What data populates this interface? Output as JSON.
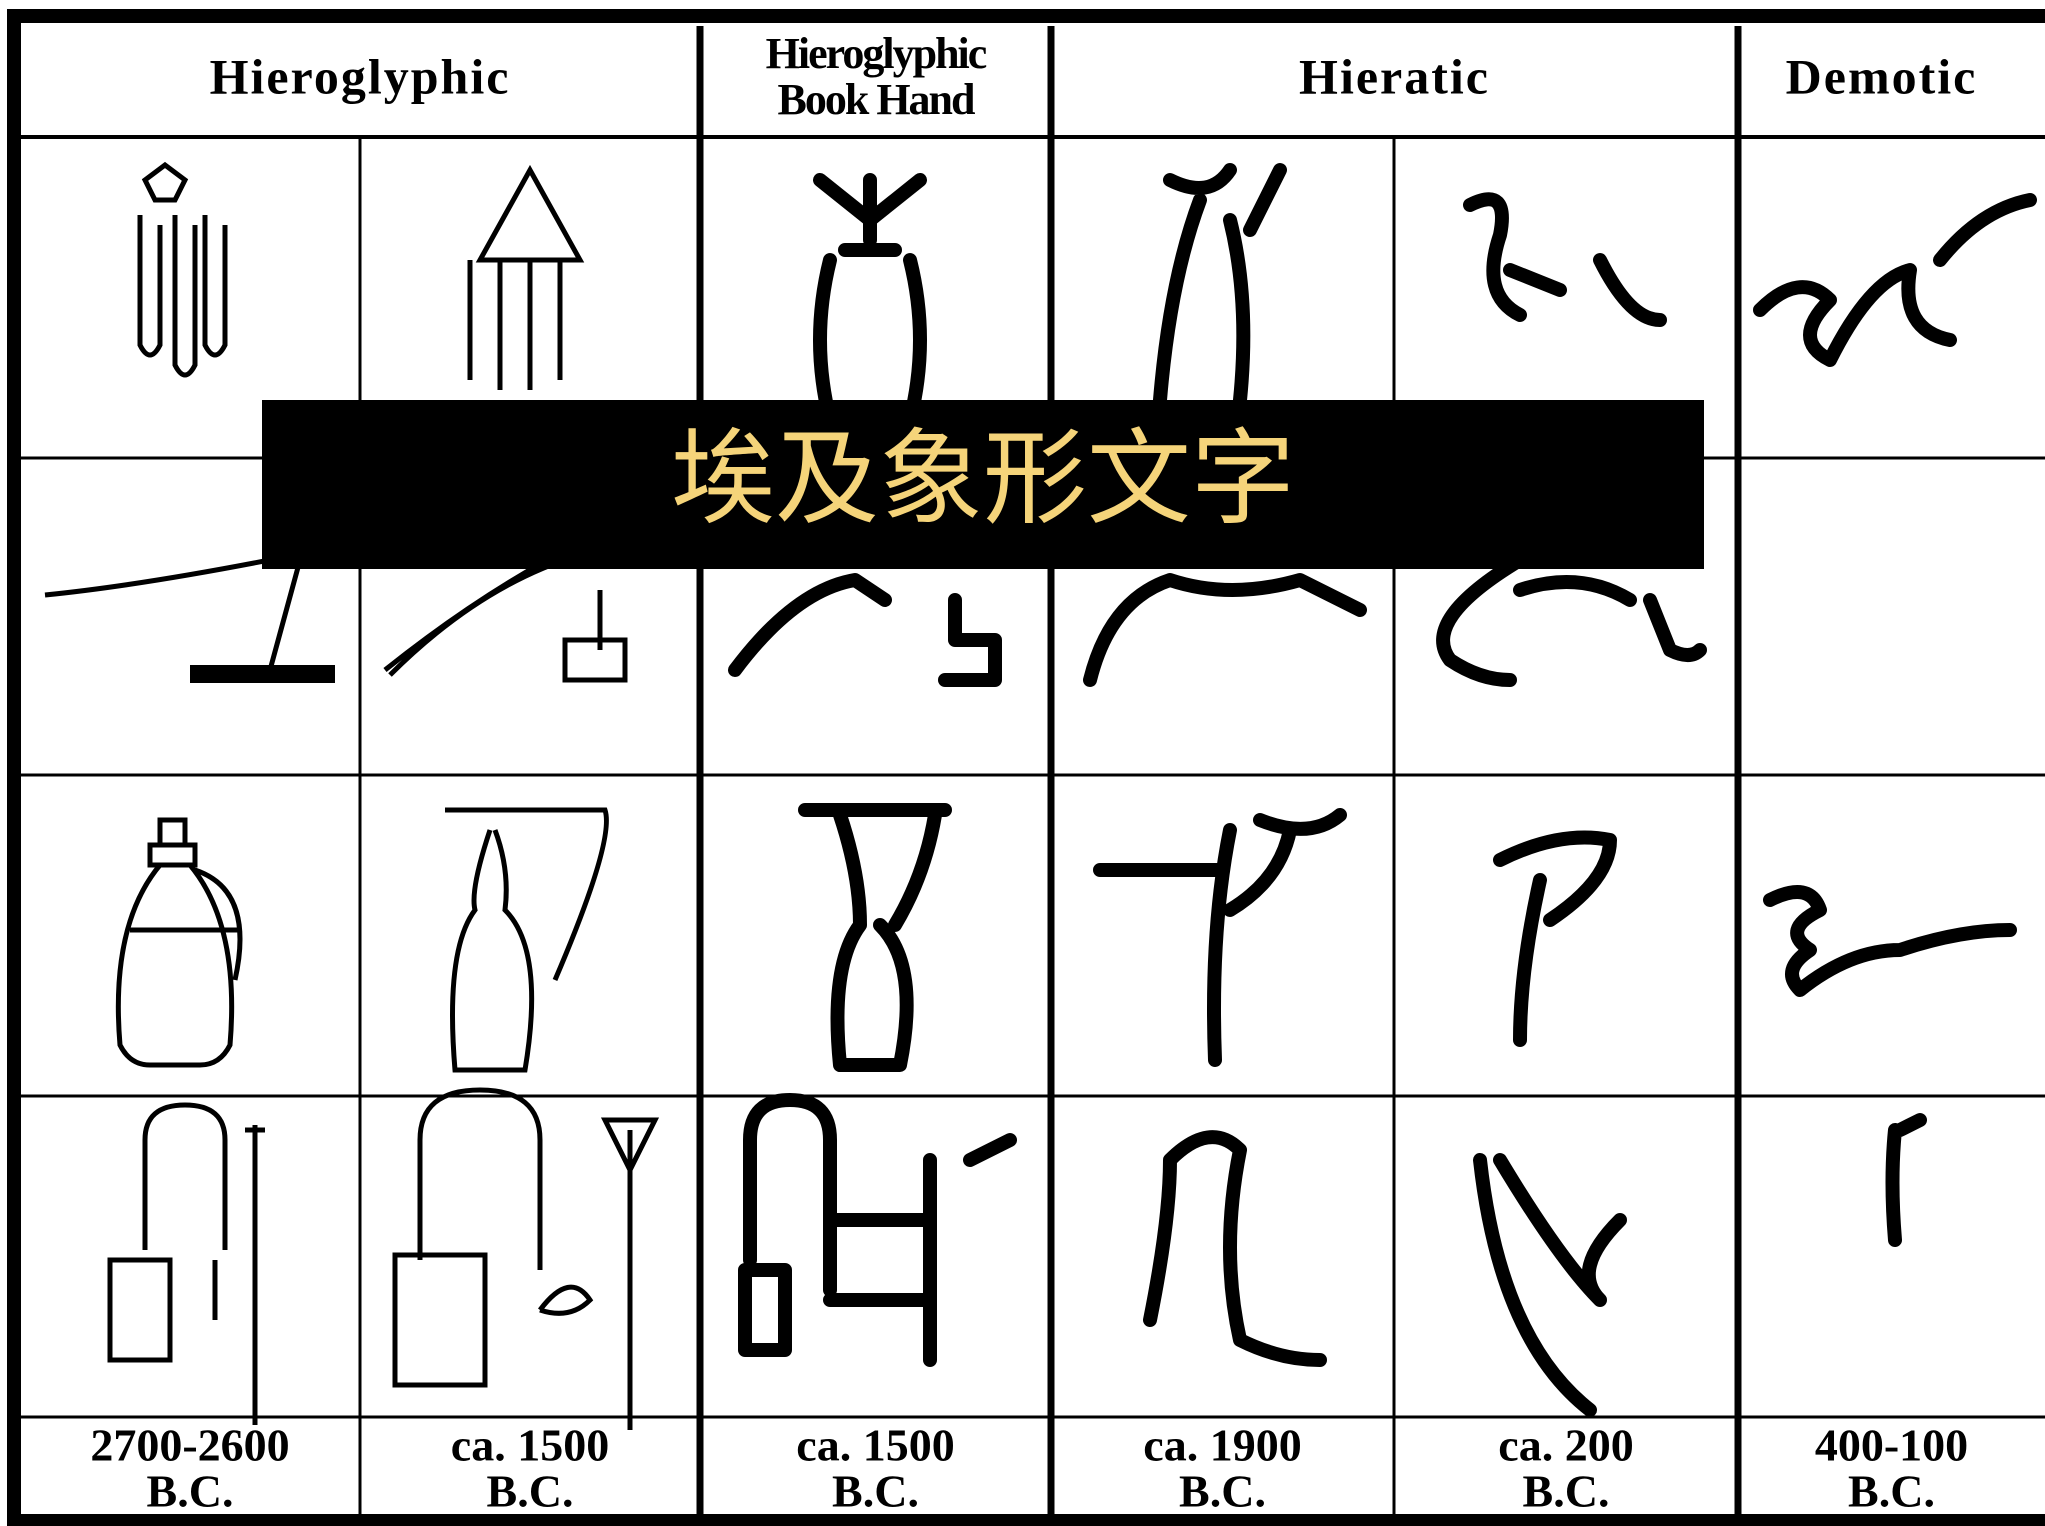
{
  "table": {
    "headers": [
      {
        "lines": [
          "Hieroglyphic"
        ]
      },
      {
        "lines": [
          "Hieroglyphic",
          "Book Hand"
        ]
      },
      {
        "lines": [
          "Hieratic"
        ]
      },
      {
        "lines": [
          "Demotic"
        ]
      }
    ],
    "dates": [
      [
        "2700-2600",
        "B.C."
      ],
      [
        "ca. 1500",
        "B.C."
      ],
      [
        "ca. 1500",
        "B.C."
      ],
      [
        "ca. 1900",
        "B.C."
      ],
      [
        "ca. 200",
        "B.C."
      ],
      [
        "400-100",
        "B.C."
      ]
    ]
  },
  "overlay": {
    "title": "埃及象形文字"
  }
}
